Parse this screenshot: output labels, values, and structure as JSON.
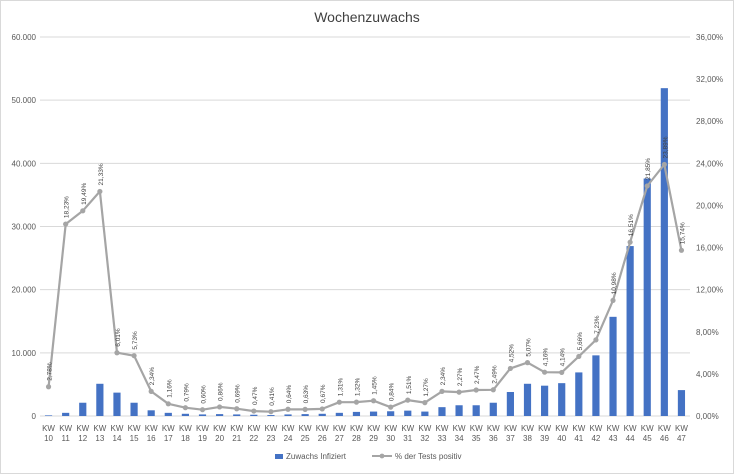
{
  "chart_data": {
    "type": "bar",
    "title": "Wochenzuwachs",
    "categories": [
      "KW 10",
      "KW 11",
      "KW 12",
      "KW 13",
      "KW 14",
      "KW 15",
      "KW 16",
      "KW 17",
      "KW 18",
      "KW 19",
      "KW 20",
      "KW 21",
      "KW 22",
      "KW 23",
      "KW 24",
      "KW 25",
      "KW 26",
      "KW 27",
      "KW 28",
      "KW 29",
      "KW 30",
      "KW 31",
      "KW 32",
      "KW 33",
      "KW 34",
      "KW 35",
      "KW 36",
      "KW 37",
      "KW 38",
      "KW 39",
      "KW 40",
      "KW 41",
      "KW 42",
      "KW 43",
      "KW 44",
      "KW 45",
      "KW 46",
      "KW 47"
    ],
    "series": [
      {
        "name": "Zuwachs Infiziert",
        "type": "bar",
        "axis": "left",
        "color": "#4472c4",
        "values": [
          100,
          500,
          2100,
          5100,
          3700,
          2100,
          900,
          500,
          350,
          250,
          300,
          250,
          200,
          150,
          250,
          300,
          350,
          500,
          650,
          700,
          750,
          850,
          700,
          1400,
          1700,
          1700,
          2100,
          3800,
          5100,
          4800,
          5200,
          6900,
          9600,
          15700,
          26900,
          37600,
          51900,
          4100
        ]
      },
      {
        "name": "% der Tests positiv",
        "type": "line",
        "axis": "right",
        "color": "#a5a5a5",
        "values": [
          2.78,
          18.23,
          19.49,
          21.33,
          6.01,
          5.73,
          2.34,
          1.16,
          0.79,
          0.6,
          0.86,
          0.69,
          0.47,
          0.41,
          0.64,
          0.63,
          0.67,
          1.31,
          1.32,
          1.45,
          0.84,
          1.51,
          1.27,
          2.34,
          2.27,
          2.47,
          2.49,
          4.52,
          5.07,
          4.16,
          4.14,
          5.66,
          7.23,
          10.98,
          16.51,
          21.85,
          23.89,
          15.74
        ],
        "labels": [
          "2,78%",
          "18,23%",
          "19,49%",
          "21,33%",
          "6,01%",
          "5,73%",
          "2,34%",
          "1,16%",
          "0,79%",
          "0,60%",
          "0,86%",
          "0,69%",
          "0,47%",
          "0,41%",
          "0,64%",
          "0,63%",
          "0,67%",
          "1,31%",
          "1,32%",
          "1,45%",
          "0,84%",
          "1,51%",
          "1,27%",
          "2,34%",
          "2,27%",
          "2,47%",
          "2,49%",
          "4,52%",
          "5,07%",
          "4,16%",
          "4,14%",
          "5,66%",
          "7,23%",
          "10,98%",
          "16,51%",
          "21,85%",
          "23,89%",
          "15,74%"
        ]
      }
    ],
    "y_left": {
      "min": 0,
      "max": 60000,
      "ticks": [
        "0",
        "10.000",
        "20.000",
        "30.000",
        "40.000",
        "50.000",
        "60.000"
      ]
    },
    "y_right": {
      "min": 0,
      "max": 36,
      "ticks": [
        "0,00%",
        "4,00%",
        "8,00%",
        "12,00%",
        "16,00%",
        "20,00%",
        "24,00%",
        "28,00%",
        "32,00%",
        "36,00%"
      ]
    },
    "grid": true,
    "legend_position": "bottom"
  }
}
